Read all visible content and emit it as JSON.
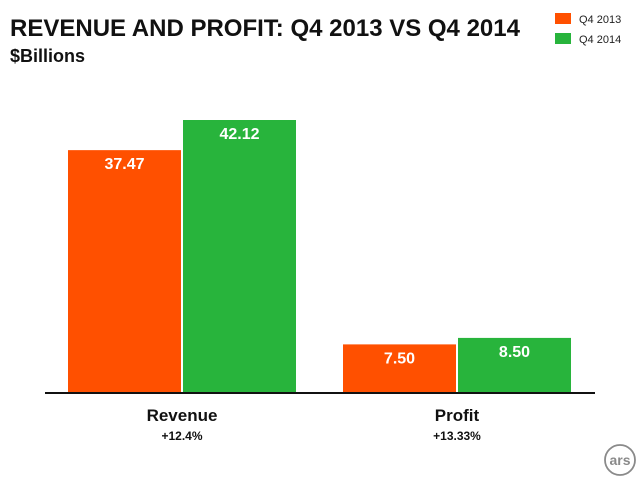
{
  "chart_data": {
    "type": "bar",
    "title": "REVENUE AND PROFIT: Q4 2013 VS Q4 2014",
    "subtitle": "$Billions",
    "categories": [
      "Revenue",
      "Profit"
    ],
    "category_notes": [
      "+12.4%",
      "+13.33%"
    ],
    "series": [
      {
        "name": "Q4 2013",
        "color": "#ff5000",
        "values": [
          37.47,
          7.5
        ],
        "labels": [
          "37.47",
          "7.50"
        ]
      },
      {
        "name": "Q4 2014",
        "color": "#28b43c",
        "values": [
          42.12,
          8.5
        ],
        "labels": [
          "42.12",
          "8.50"
        ]
      }
    ],
    "ylim": [
      0,
      42.12
    ],
    "grid": false,
    "legend_position": "top-right",
    "xlabel": "",
    "ylabel": ""
  },
  "watermark": {
    "text": "ars"
  }
}
